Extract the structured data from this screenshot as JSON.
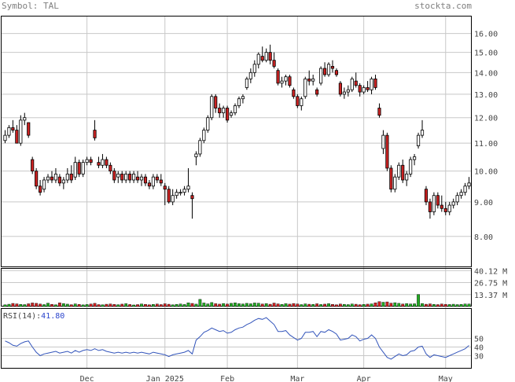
{
  "header": {
    "symbol_label": "Symbol:",
    "symbol": "TAL",
    "brand": "stockta.com"
  },
  "rsi_label": "RSI(14):",
  "rsi_value": "41.80",
  "colors": {
    "up": "#ffffff",
    "down": "#cc2222",
    "vol_up": "#22aa22",
    "vol_down": "#cc2222",
    "rsi_line": "#3355bb",
    "grid": "#c8c8c8",
    "frame": "#000000"
  },
  "chart_data": {
    "type": "candlestick",
    "price_axis": {
      "scale": "log",
      "range": [
        7.2,
        17.0
      ],
      "ticks": [
        "8.00",
        "9.00",
        "10.00",
        "11.00",
        "12.00",
        "13.00",
        "14.00",
        "15.00",
        "16.00"
      ]
    },
    "volume_axis": {
      "range": [
        0,
        43
      ],
      "ticks": [
        "13.37 M",
        "26.75 M",
        "40.12 M"
      ]
    },
    "rsi_axis": {
      "range": [
        15,
        85
      ],
      "ticks": [
        "30",
        "40",
        "50"
      ]
    },
    "x_ticks": [
      {
        "label": "Dec",
        "index": 21
      },
      {
        "label": "Jan 2025",
        "index": 41
      },
      {
        "label": "Feb",
        "index": 57
      },
      {
        "label": "Mar",
        "index": 75
      },
      {
        "label": "Apr",
        "index": 92
      },
      {
        "label": "May",
        "index": 113
      }
    ],
    "candles": [
      [
        11.1,
        11.5,
        11.0,
        11.3
      ],
      [
        11.3,
        11.7,
        11.2,
        11.6
      ],
      [
        11.6,
        11.9,
        11.4,
        11.5
      ],
      [
        11.5,
        11.7,
        11.0,
        11.0
      ],
      [
        11.0,
        12.1,
        10.9,
        11.9
      ],
      [
        11.9,
        12.2,
        11.7,
        12.0
      ],
      [
        11.8,
        11.8,
        11.2,
        11.3
      ],
      [
        10.4,
        10.5,
        9.9,
        10.0
      ],
      [
        10.0,
        10.1,
        9.4,
        9.5
      ],
      [
        9.5,
        9.7,
        9.2,
        9.3
      ],
      [
        9.4,
        9.8,
        9.3,
        9.7
      ],
      [
        9.7,
        9.9,
        9.6,
        9.8
      ],
      [
        9.8,
        10.0,
        9.6,
        9.7
      ],
      [
        9.7,
        10.1,
        9.6,
        9.9
      ],
      [
        9.8,
        9.9,
        9.5,
        9.6
      ],
      [
        9.6,
        9.8,
        9.4,
        9.7
      ],
      [
        9.7,
        10.1,
        9.6,
        9.9
      ],
      [
        9.9,
        10.2,
        9.6,
        9.7
      ],
      [
        9.8,
        10.5,
        9.7,
        10.3
      ],
      [
        10.3,
        10.4,
        9.8,
        9.9
      ],
      [
        9.9,
        10.4,
        9.8,
        10.3
      ],
      [
        10.3,
        10.5,
        10.2,
        10.4
      ],
      [
        10.4,
        10.5,
        10.2,
        10.3
      ],
      [
        11.5,
        11.9,
        11.1,
        11.2
      ],
      [
        10.3,
        10.5,
        10.1,
        10.2
      ],
      [
        10.2,
        10.6,
        10.1,
        10.4
      ],
      [
        10.4,
        10.5,
        10.1,
        10.2
      ],
      [
        10.2,
        10.3,
        9.9,
        10.0
      ],
      [
        10.0,
        10.1,
        9.6,
        9.7
      ],
      [
        9.8,
        10.0,
        9.6,
        9.9
      ],
      [
        9.9,
        10.0,
        9.6,
        9.7
      ],
      [
        9.7,
        10.0,
        9.6,
        9.9
      ],
      [
        9.9,
        10.0,
        9.6,
        9.7
      ],
      [
        9.7,
        10.0,
        9.6,
        9.9
      ],
      [
        9.8,
        10.0,
        9.6,
        9.7
      ],
      [
        9.7,
        9.9,
        9.5,
        9.8
      ],
      [
        9.8,
        9.9,
        9.5,
        9.6
      ],
      [
        9.6,
        9.7,
        9.4,
        9.5
      ],
      [
        9.5,
        9.9,
        9.4,
        9.8
      ],
      [
        9.8,
        9.9,
        9.6,
        9.7
      ],
      [
        9.7,
        9.9,
        9.5,
        9.6
      ],
      [
        9.5,
        9.6,
        8.9,
        9.4
      ],
      [
        9.4,
        9.5,
        8.95,
        9.0
      ],
      [
        9.0,
        9.4,
        8.9,
        9.2
      ],
      [
        9.2,
        9.4,
        9.1,
        9.3
      ],
      [
        9.3,
        9.4,
        9.2,
        9.3
      ],
      [
        9.3,
        9.5,
        9.2,
        9.4
      ],
      [
        9.4,
        10.1,
        9.3,
        9.5
      ],
      [
        9.2,
        9.3,
        8.5,
        9.1
      ],
      [
        10.5,
        10.7,
        10.2,
        10.6
      ],
      [
        10.6,
        11.2,
        10.5,
        11.1
      ],
      [
        11.1,
        11.6,
        11.0,
        11.5
      ],
      [
        11.5,
        12.1,
        11.4,
        12.0
      ],
      [
        12.0,
        13.0,
        11.9,
        12.9
      ],
      [
        12.9,
        13.0,
        12.2,
        12.4
      ],
      [
        12.4,
        12.6,
        12.0,
        12.2
      ],
      [
        12.2,
        12.5,
        12.0,
        12.4
      ],
      [
        12.4,
        12.5,
        11.8,
        11.9
      ],
      [
        12.1,
        12.3,
        12.0,
        12.2
      ],
      [
        12.2,
        12.6,
        12.1,
        12.5
      ],
      [
        12.5,
        12.9,
        12.4,
        12.8
      ],
      [
        12.8,
        13.0,
        12.6,
        12.9
      ],
      [
        13.3,
        13.8,
        13.2,
        13.7
      ],
      [
        13.7,
        14.2,
        13.5,
        14.0
      ],
      [
        14.0,
        14.6,
        13.8,
        14.4
      ],
      [
        14.4,
        15.0,
        14.2,
        14.9
      ],
      [
        14.8,
        15.3,
        14.5,
        14.6
      ],
      [
        14.6,
        15.2,
        14.5,
        15.0
      ],
      [
        15.0,
        15.4,
        14.4,
        14.6
      ],
      [
        14.6,
        15.0,
        14.2,
        14.3
      ],
      [
        14.1,
        14.2,
        13.4,
        13.5
      ],
      [
        13.5,
        13.8,
        13.3,
        13.6
      ],
      [
        13.6,
        13.9,
        13.4,
        13.8
      ],
      [
        13.8,
        13.9,
        13.3,
        13.4
      ],
      [
        13.2,
        13.3,
        12.8,
        12.9
      ],
      [
        12.9,
        13.0,
        12.4,
        12.5
      ],
      [
        12.5,
        12.9,
        12.3,
        12.8
      ],
      [
        12.9,
        13.8,
        12.8,
        13.7
      ],
      [
        13.7,
        14.1,
        13.4,
        13.6
      ],
      [
        13.6,
        13.9,
        13.4,
        13.7
      ],
      [
        13.2,
        13.3,
        12.9,
        13.0
      ],
      [
        13.5,
        14.3,
        13.4,
        14.2
      ],
      [
        14.2,
        14.5,
        13.8,
        13.9
      ],
      [
        13.9,
        14.5,
        13.8,
        14.4
      ],
      [
        14.3,
        14.6,
        14.0,
        14.2
      ],
      [
        14.1,
        14.2,
        13.8,
        13.9
      ],
      [
        13.5,
        13.6,
        12.9,
        13.0
      ],
      [
        13.0,
        13.3,
        12.8,
        13.1
      ],
      [
        13.1,
        13.4,
        12.9,
        13.2
      ],
      [
        13.2,
        13.8,
        13.1,
        13.7
      ],
      [
        13.6,
        14.0,
        13.3,
        13.4
      ],
      [
        13.4,
        13.5,
        12.9,
        13.1
      ],
      [
        13.1,
        13.4,
        13.0,
        13.3
      ],
      [
        13.3,
        13.6,
        13.1,
        13.2
      ],
      [
        13.2,
        13.8,
        13.0,
        13.7
      ],
      [
        13.7,
        13.9,
        13.2,
        13.3
      ],
      [
        12.4,
        12.6,
        12.0,
        12.1
      ],
      [
        10.8,
        11.5,
        10.6,
        11.3
      ],
      [
        11.3,
        11.4,
        10.0,
        10.1
      ],
      [
        10.1,
        10.2,
        9.3,
        9.4
      ],
      [
        9.4,
        9.9,
        9.3,
        9.8
      ],
      [
        9.8,
        10.3,
        9.7,
        10.2
      ],
      [
        10.2,
        10.4,
        9.6,
        9.7
      ],
      [
        9.7,
        10.0,
        9.5,
        9.9
      ],
      [
        9.9,
        10.5,
        9.8,
        10.4
      ],
      [
        10.4,
        10.6,
        10.2,
        10.5
      ],
      [
        10.9,
        11.4,
        10.8,
        11.3
      ],
      [
        11.3,
        11.9,
        11.2,
        11.5
      ],
      [
        9.4,
        9.5,
        8.9,
        9.0
      ],
      [
        9.0,
        9.1,
        8.5,
        8.7
      ],
      [
        8.7,
        9.3,
        8.6,
        9.2
      ],
      [
        9.2,
        9.3,
        8.8,
        8.9
      ],
      [
        8.9,
        9.2,
        8.7,
        8.8
      ],
      [
        8.8,
        9.0,
        8.6,
        8.7
      ],
      [
        8.7,
        9.0,
        8.6,
        8.9
      ],
      [
        8.9,
        9.1,
        8.8,
        9.0
      ],
      [
        9.0,
        9.3,
        8.9,
        9.2
      ],
      [
        9.2,
        9.4,
        9.1,
        9.3
      ],
      [
        9.3,
        9.6,
        9.2,
        9.5
      ],
      [
        9.5,
        9.8,
        9.4,
        9.6
      ]
    ],
    "volume": [
      [
        2.0,
        2.6,
        3.5,
        3.0,
        2.4,
        2.2,
        3.1,
        4.0,
        3.6,
        2.8,
        2.2,
        3.8,
        2.5,
        2.0,
        4.1,
        3.3,
        2.7,
        2.1,
        3.0,
        2.4,
        1.9,
        2.3,
        2.8,
        3.6,
        2.2,
        2.0,
        2.6,
        2.9,
        2.4,
        2.1,
        2.7,
        3.2,
        2.3,
        1.8,
        2.2,
        2.9,
        2.5,
        2.0,
        2.4,
        2.8,
        2.2,
        3.1,
        2.6,
        2.0,
        2.5,
        2.9,
        2.3,
        4.2,
        3.5,
        2.7,
        8.0,
        4.0,
        3.0,
        4.5,
        3.2,
        2.7,
        3.4,
        2.8,
        3.6,
        4.1,
        3.2,
        2.9,
        3.6,
        3.1,
        4.0,
        3.7,
        2.8,
        3.3,
        2.6,
        3.9,
        3.0,
        2.4,
        3.2,
        2.7,
        3.4,
        2.9,
        2.2,
        3.0,
        2.6,
        2.5,
        3.1,
        2.3,
        2.7,
        3.2,
        2.4,
        2.0,
        2.8,
        2.5,
        2.2,
        2.9,
        2.6,
        2.1,
        2.4,
        2.7,
        3.0,
        4.2,
        5.5,
        4.8,
        5.2,
        3.8,
        4.3,
        3.6,
        2.8,
        3.3,
        2.9,
        3.1,
        13.5,
        3.4,
        2.6,
        3.0,
        2.4,
        2.2,
        2.8,
        2.5,
        2.3,
        2.6,
        2.2,
        2.5,
        2.9,
        2.8
      ]
    ],
    "rsi": [
      47,
      45,
      42,
      41,
      44,
      46,
      47,
      40,
      34,
      30,
      32,
      33,
      34,
      35,
      33,
      34,
      35,
      33,
      36,
      34,
      36,
      37,
      36,
      38,
      36,
      37,
      35,
      34,
      33,
      34,
      33,
      34,
      33,
      34,
      33,
      34,
      33,
      32,
      34,
      33,
      32,
      31,
      29,
      31,
      32,
      33,
      34,
      36,
      32,
      48,
      52,
      57,
      59,
      62,
      60,
      58,
      59,
      56,
      57,
      60,
      62,
      63,
      66,
      68,
      71,
      73,
      72,
      74,
      70,
      66,
      58,
      58,
      59,
      54,
      51,
      48,
      50,
      57,
      57,
      58,
      52,
      58,
      57,
      60,
      58,
      55,
      48,
      49,
      50,
      54,
      52,
      47,
      49,
      50,
      54,
      50,
      40,
      34,
      28,
      26,
      29,
      32,
      30,
      31,
      35,
      36,
      40,
      41,
      32,
      28,
      31,
      30,
      29,
      28,
      30,
      32,
      34,
      36,
      38,
      41.8
    ]
  }
}
